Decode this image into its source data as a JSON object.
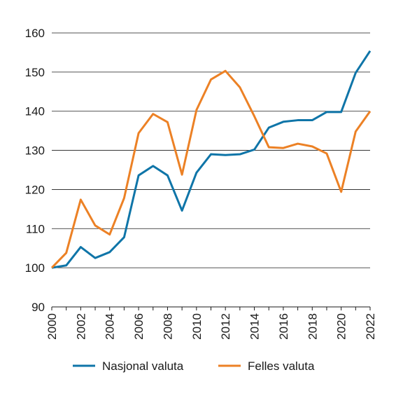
{
  "chart_data": {
    "type": "line",
    "title": "",
    "xlabel": "",
    "ylabel": "",
    "x": [
      2000,
      2001,
      2002,
      2003,
      2004,
      2005,
      2006,
      2007,
      2008,
      2009,
      2010,
      2011,
      2012,
      2013,
      2014,
      2015,
      2016,
      2017,
      2018,
      2019,
      2020,
      2021,
      2022
    ],
    "x_tick_labels": [
      "2000",
      "2002",
      "2004",
      "2006",
      "2008",
      "2010",
      "2012",
      "2014",
      "2016",
      "2018",
      "2020",
      "2022"
    ],
    "y_tick_labels": [
      "90",
      "100",
      "110",
      "120",
      "130",
      "140",
      "150",
      "160"
    ],
    "ylim": [
      90,
      160
    ],
    "grid": "horizontal",
    "legend_position": "bottom",
    "series": [
      {
        "name": "Nasjonal valuta",
        "color": "#0f75a8",
        "values": [
          100.0,
          100.6,
          105.3,
          102.5,
          104.0,
          107.8,
          123.6,
          126.0,
          123.6,
          114.6,
          124.3,
          129.0,
          128.8,
          129.0,
          130.2,
          135.8,
          137.3,
          137.7,
          137.7,
          139.8,
          139.8,
          149.8,
          155.4
        ]
      },
      {
        "name": "Felles valuta",
        "color": "#ec8125",
        "values": [
          100.0,
          103.8,
          117.4,
          110.8,
          108.5,
          117.8,
          134.4,
          139.3,
          137.2,
          123.8,
          140.3,
          148.1,
          150.3,
          146.1,
          138.7,
          130.8,
          130.6,
          131.7,
          131.0,
          129.2,
          119.4,
          134.8,
          140.0
        ]
      }
    ]
  }
}
